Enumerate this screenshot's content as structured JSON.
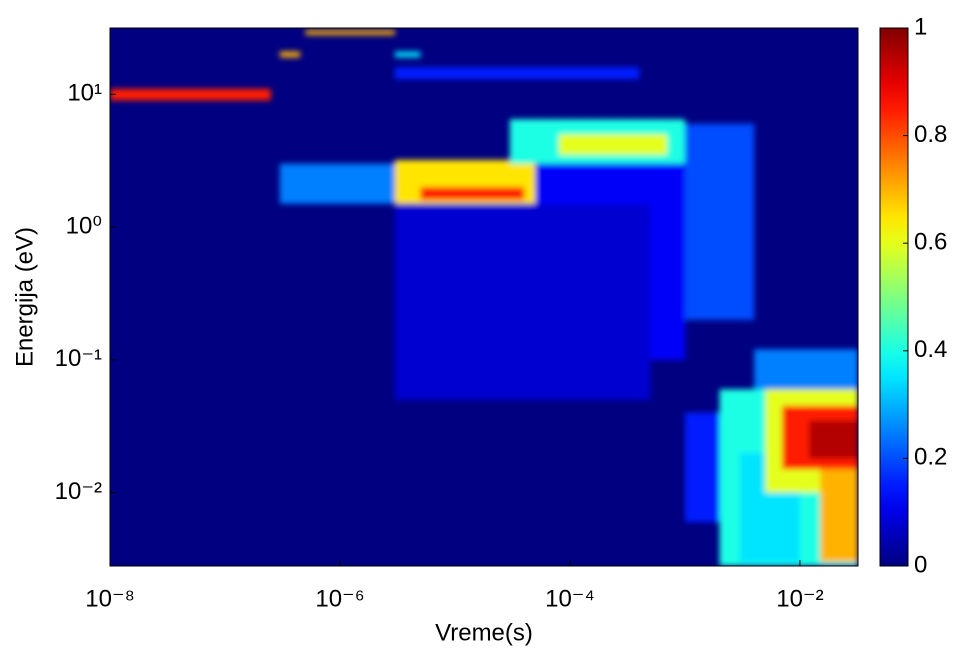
{
  "chart_data": {
    "type": "heatmap",
    "xlabel": "Vreme(s)",
    "ylabel": "Energija (eV)",
    "xscale": "log",
    "yscale": "log",
    "colormap": "jet",
    "xlim": [
      1e-08,
      0.032
    ],
    "ylim": [
      0.0028,
      31.6
    ],
    "xticks": [
      {
        "value": 1e-08,
        "label": "10⁻⁸"
      },
      {
        "value": 1e-06,
        "label": "10⁻⁶"
      },
      {
        "value": 0.0001,
        "label": "10⁻⁴"
      },
      {
        "value": 0.01,
        "label": "10⁻²"
      }
    ],
    "yticks": [
      {
        "value": 0.01,
        "label": "10⁻²"
      },
      {
        "value": 0.1,
        "label": "10⁻¹"
      },
      {
        "value": 1,
        "label": "10⁰"
      },
      {
        "value": 10,
        "label": "10¹"
      }
    ],
    "clim": [
      0,
      1
    ],
    "cticks": [
      0,
      0.2,
      0.4,
      0.6,
      0.8,
      1
    ],
    "regions": [
      {
        "x": [
          1e-08,
          2.5e-07
        ],
        "y": [
          9,
          11
        ],
        "value": 0.85
      },
      {
        "x": [
          3e-07,
          4.5e-07
        ],
        "y": [
          19,
          21
        ],
        "value": 0.7
      },
      {
        "x": [
          5e-07,
          3e-06
        ],
        "y": [
          28,
          30.5
        ],
        "value": 0.7
      },
      {
        "x": [
          3e-06,
          5e-06
        ],
        "y": [
          19,
          21
        ],
        "value": 0.35
      },
      {
        "x": [
          3e-06,
          0.0004
        ],
        "y": [
          13,
          16
        ],
        "value": 0.15
      },
      {
        "x": [
          3e-07,
          3e-06
        ],
        "y": [
          1.5,
          3
        ],
        "value": 0.25
      },
      {
        "x": [
          3e-06,
          5e-05
        ],
        "y": [
          1.5,
          3.2
        ],
        "value": 0.65
      },
      {
        "x": [
          5e-06,
          4e-05
        ],
        "y": [
          1.6,
          2
        ],
        "value": 0.85
      },
      {
        "x": [
          3e-05,
          0.001
        ],
        "y": [
          3,
          6.5
        ],
        "value": 0.4
      },
      {
        "x": [
          8e-05,
          0.0007
        ],
        "y": [
          3.5,
          5
        ],
        "value": 0.6
      },
      {
        "x": [
          0.001,
          0.004
        ],
        "y": [
          0.2,
          6
        ],
        "value": 0.2
      },
      {
        "x": [
          5e-05,
          0.001
        ],
        "y": [
          0.1,
          3
        ],
        "value": 0.12
      },
      {
        "x": [
          3e-06,
          0.0005
        ],
        "y": [
          0.05,
          1.5
        ],
        "value": 0.08
      },
      {
        "x": [
          0.004,
          0.032
        ],
        "y": [
          0.06,
          0.12
        ],
        "value": 0.25
      },
      {
        "x": [
          0.001,
          0.003
        ],
        "y": [
          0.006,
          0.04
        ],
        "value": 0.15
      },
      {
        "x": [
          0.002,
          0.032
        ],
        "y": [
          0.0028,
          0.06
        ],
        "value": 0.4
      },
      {
        "x": [
          0.003,
          0.01
        ],
        "y": [
          0.003,
          0.02
        ],
        "value": 0.35
      },
      {
        "x": [
          0.005,
          0.032
        ],
        "y": [
          0.01,
          0.06
        ],
        "value": 0.6
      },
      {
        "x": [
          0.015,
          0.032
        ],
        "y": [
          0.003,
          0.015
        ],
        "value": 0.7
      },
      {
        "x": [
          0.007,
          0.032
        ],
        "y": [
          0.015,
          0.045
        ],
        "value": 0.85
      },
      {
        "x": [
          0.012,
          0.032
        ],
        "y": [
          0.018,
          0.035
        ],
        "value": 0.95
      }
    ]
  }
}
